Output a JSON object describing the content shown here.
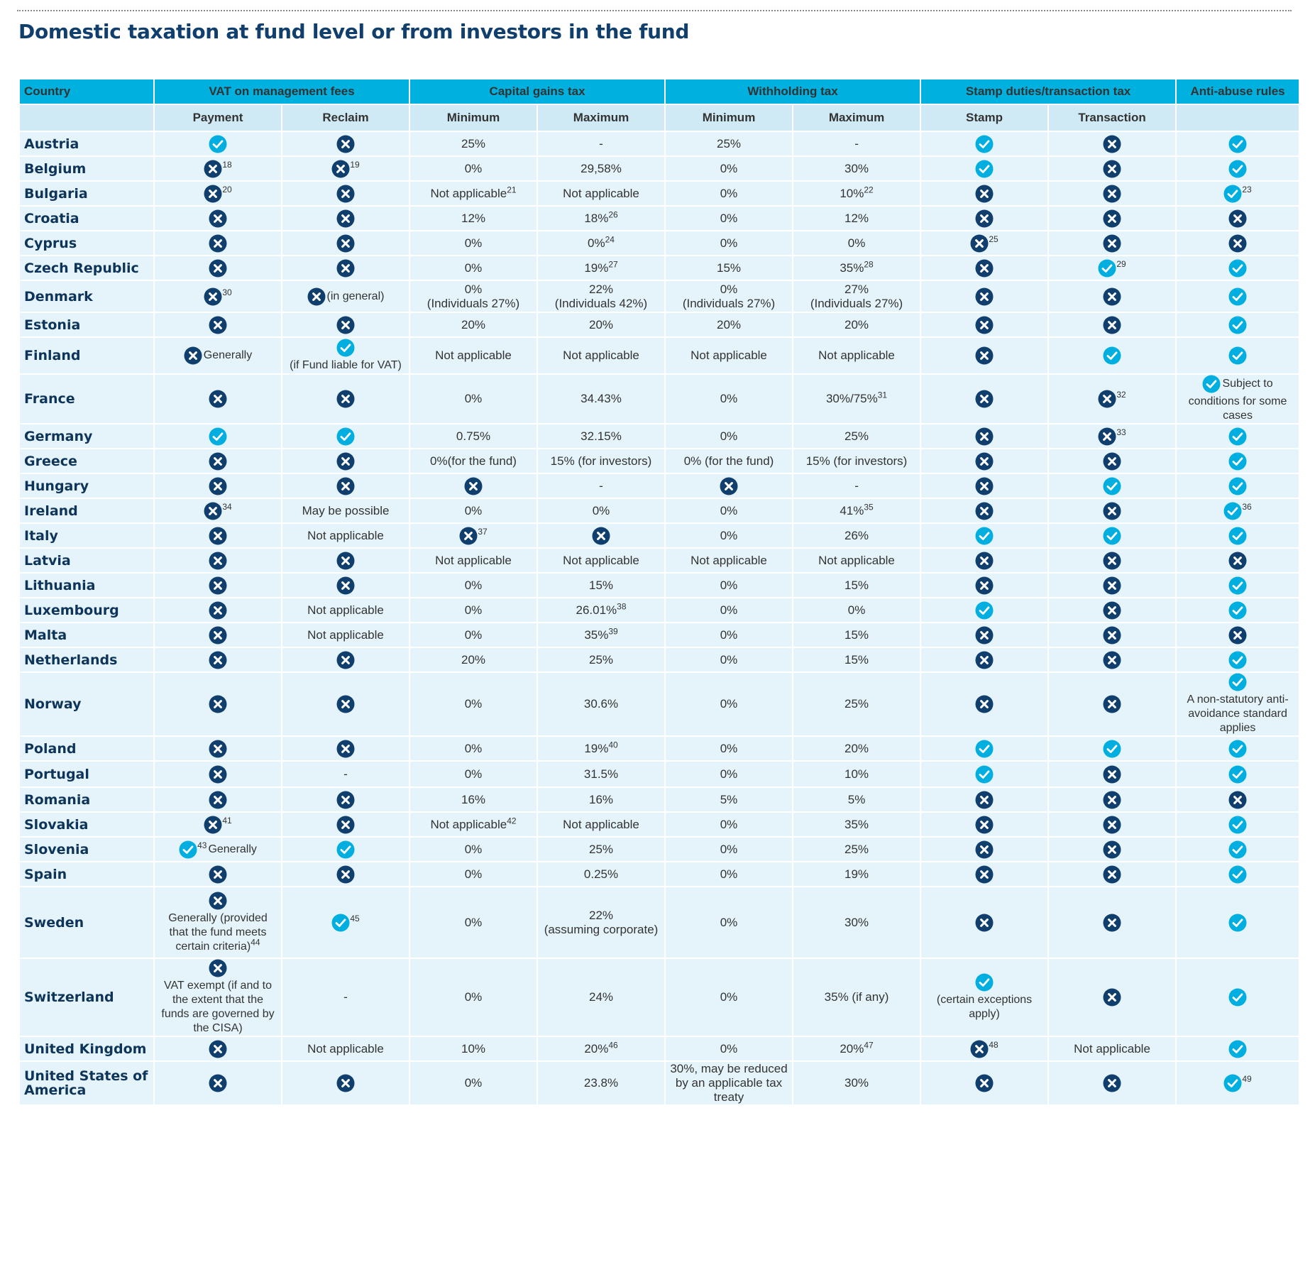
{
  "title": "Domestic taxation at fund level or from investors in the fund",
  "colors": {
    "header": "#00b0df",
    "subheader": "#cfeaf5",
    "row": "#e5f4fb",
    "navy": "#103e6d",
    "check": "#00aee0"
  },
  "columns": {
    "group": [
      "Country",
      "VAT on management fees",
      "Capital gains tax",
      "Withholding tax",
      "Stamp duties/transaction tax",
      "Anti-abuse rules"
    ],
    "sub": [
      "Payment",
      "Reclaim",
      "Minimum",
      "Maximum",
      "Minimum",
      "Maximum",
      "Stamp",
      "Transaction",
      ""
    ]
  },
  "rows": [
    {
      "country": "Austria",
      "cells": [
        {
          "icon": "check"
        },
        {
          "icon": "cross"
        },
        {
          "text": "25%"
        },
        {
          "text": "-"
        },
        {
          "text": "25%"
        },
        {
          "text": "-"
        },
        {
          "icon": "check"
        },
        {
          "icon": "cross"
        },
        {
          "icon": "check"
        }
      ]
    },
    {
      "country": "Belgium",
      "cells": [
        {
          "icon": "cross",
          "sup": "18"
        },
        {
          "icon": "cross",
          "sup": "19"
        },
        {
          "text": "0%"
        },
        {
          "text": "29,58%"
        },
        {
          "text": "0%"
        },
        {
          "text": "30%"
        },
        {
          "icon": "check"
        },
        {
          "icon": "cross"
        },
        {
          "icon": "check"
        }
      ]
    },
    {
      "country": "Bulgaria",
      "cells": [
        {
          "icon": "cross",
          "sup": "20"
        },
        {
          "icon": "cross"
        },
        {
          "text": "Not applicable",
          "sup": "21"
        },
        {
          "text": "Not applicable"
        },
        {
          "text": "0%"
        },
        {
          "text": "10%",
          "sup": "22"
        },
        {
          "icon": "cross"
        },
        {
          "icon": "cross"
        },
        {
          "icon": "check",
          "sup": "23"
        }
      ]
    },
    {
      "country": "Croatia",
      "cells": [
        {
          "icon": "cross"
        },
        {
          "icon": "cross"
        },
        {
          "text": "12%"
        },
        {
          "text": "18%",
          "sup": "26"
        },
        {
          "text": "0%"
        },
        {
          "text": "12%"
        },
        {
          "icon": "cross"
        },
        {
          "icon": "cross"
        },
        {
          "icon": "cross"
        }
      ]
    },
    {
      "country": "Cyprus",
      "cells": [
        {
          "icon": "cross"
        },
        {
          "icon": "cross"
        },
        {
          "text": "0%"
        },
        {
          "text": "0%",
          "sup": "24"
        },
        {
          "text": "0%"
        },
        {
          "text": "0%"
        },
        {
          "icon": "cross",
          "sup": "25"
        },
        {
          "icon": "cross"
        },
        {
          "icon": "cross"
        }
      ]
    },
    {
      "country": "Czech Republic",
      "cells": [
        {
          "icon": "cross"
        },
        {
          "icon": "cross"
        },
        {
          "text": "0%"
        },
        {
          "text": "19%",
          "sup": "27"
        },
        {
          "text": "15%"
        },
        {
          "text": "35%",
          "sup": "28"
        },
        {
          "icon": "cross"
        },
        {
          "icon": "check",
          "sup": "29"
        },
        {
          "icon": "check"
        }
      ]
    },
    {
      "country": "Denmark",
      "cells": [
        {
          "icon": "cross",
          "sup": "30"
        },
        {
          "icon": "cross",
          "after": "(in general)"
        },
        {
          "text": "0%",
          "sub": "(Individuals 27%)"
        },
        {
          "text": "22%",
          "sub": "(Individuals 42%)"
        },
        {
          "text": "0%",
          "sub": "(Individuals 27%)"
        },
        {
          "text": "27%",
          "sub": "(Individuals 27%)"
        },
        {
          "icon": "cross"
        },
        {
          "icon": "cross"
        },
        {
          "icon": "check"
        }
      ]
    },
    {
      "country": "Estonia",
      "cells": [
        {
          "icon": "cross"
        },
        {
          "icon": "cross"
        },
        {
          "text": "20%"
        },
        {
          "text": "20%"
        },
        {
          "text": "20%"
        },
        {
          "text": "20%"
        },
        {
          "icon": "cross"
        },
        {
          "icon": "cross"
        },
        {
          "icon": "check"
        }
      ]
    },
    {
      "country": "Finland",
      "cells": [
        {
          "icon": "cross",
          "after": "Generally"
        },
        {
          "icon": "check",
          "below": "(if Fund liable for VAT)"
        },
        {
          "text": "Not applicable"
        },
        {
          "text": "Not applicable"
        },
        {
          "text": "Not applicable"
        },
        {
          "text": "Not applicable"
        },
        {
          "icon": "cross"
        },
        {
          "icon": "check"
        },
        {
          "icon": "check"
        }
      ]
    },
    {
      "country": "France",
      "cells": [
        {
          "icon": "cross"
        },
        {
          "icon": "cross"
        },
        {
          "text": "0%"
        },
        {
          "text": "34.43%"
        },
        {
          "text": "0%"
        },
        {
          "text": "30%/75%",
          "sup": "31"
        },
        {
          "icon": "cross"
        },
        {
          "icon": "cross",
          "sup": "32"
        },
        {
          "icon": "check",
          "after": "Subject to",
          "below": "conditions for some cases"
        }
      ]
    },
    {
      "country": "Germany",
      "cells": [
        {
          "icon": "check"
        },
        {
          "icon": "check"
        },
        {
          "text": "0.75%"
        },
        {
          "text": "32.15%"
        },
        {
          "text": "0%"
        },
        {
          "text": "25%"
        },
        {
          "icon": "cross"
        },
        {
          "icon": "cross",
          "sup": "33"
        },
        {
          "icon": "check"
        }
      ]
    },
    {
      "country": "Greece",
      "cells": [
        {
          "icon": "cross"
        },
        {
          "icon": "cross"
        },
        {
          "text": "0%(for the fund)"
        },
        {
          "text": "15% (for investors)"
        },
        {
          "text": "0% (for the fund)"
        },
        {
          "text": "15% (for investors)"
        },
        {
          "icon": "cross"
        },
        {
          "icon": "cross"
        },
        {
          "icon": "check"
        }
      ]
    },
    {
      "country": "Hungary",
      "cells": [
        {
          "icon": "cross"
        },
        {
          "icon": "cross"
        },
        {
          "icon": "cross"
        },
        {
          "text": "-"
        },
        {
          "icon": "cross"
        },
        {
          "text": "-"
        },
        {
          "icon": "cross"
        },
        {
          "icon": "check"
        },
        {
          "icon": "check"
        }
      ]
    },
    {
      "country": "Ireland",
      "cells": [
        {
          "icon": "cross",
          "sup": "34"
        },
        {
          "text": "May be possible"
        },
        {
          "text": "0%"
        },
        {
          "text": "0%"
        },
        {
          "text": "0%"
        },
        {
          "text": "41%",
          "sup": "35"
        },
        {
          "icon": "cross"
        },
        {
          "icon": "cross"
        },
        {
          "icon": "check",
          "sup": "36"
        }
      ]
    },
    {
      "country": "Italy",
      "cells": [
        {
          "icon": "cross"
        },
        {
          "text": "Not applicable"
        },
        {
          "icon": "cross",
          "sup": "37"
        },
        {
          "icon": "cross"
        },
        {
          "text": "0%"
        },
        {
          "text": "26%"
        },
        {
          "icon": "check"
        },
        {
          "icon": "check"
        },
        {
          "icon": "check"
        }
      ]
    },
    {
      "country": "Latvia",
      "cells": [
        {
          "icon": "cross"
        },
        {
          "icon": "cross"
        },
        {
          "text": "Not applicable"
        },
        {
          "text": "Not applicable"
        },
        {
          "text": "Not applicable"
        },
        {
          "text": "Not applicable"
        },
        {
          "icon": "cross"
        },
        {
          "icon": "cross"
        },
        {
          "icon": "cross"
        }
      ]
    },
    {
      "country": "Lithuania",
      "cells": [
        {
          "icon": "cross"
        },
        {
          "icon": "cross"
        },
        {
          "text": "0%"
        },
        {
          "text": "15%"
        },
        {
          "text": "0%"
        },
        {
          "text": "15%"
        },
        {
          "icon": "cross"
        },
        {
          "icon": "cross"
        },
        {
          "icon": "check"
        }
      ]
    },
    {
      "country": "Luxembourg",
      "cells": [
        {
          "icon": "cross"
        },
        {
          "text": "Not applicable"
        },
        {
          "text": "0%"
        },
        {
          "text": "26.01%",
          "sup": "38"
        },
        {
          "text": "0%"
        },
        {
          "text": "0%"
        },
        {
          "icon": "check"
        },
        {
          "icon": "cross"
        },
        {
          "icon": "check"
        }
      ]
    },
    {
      "country": "Malta",
      "cells": [
        {
          "icon": "cross"
        },
        {
          "text": "Not applicable"
        },
        {
          "text": "0%"
        },
        {
          "text": "35%",
          "sup": "39"
        },
        {
          "text": "0%"
        },
        {
          "text": "15%"
        },
        {
          "icon": "cross"
        },
        {
          "icon": "cross"
        },
        {
          "icon": "cross"
        }
      ]
    },
    {
      "country": "Netherlands",
      "cells": [
        {
          "icon": "cross"
        },
        {
          "icon": "cross"
        },
        {
          "text": "20%"
        },
        {
          "text": "25%"
        },
        {
          "text": "0%"
        },
        {
          "text": "15%"
        },
        {
          "icon": "cross"
        },
        {
          "icon": "cross"
        },
        {
          "icon": "check"
        }
      ]
    },
    {
      "country": "Norway",
      "cells": [
        {
          "icon": "cross"
        },
        {
          "icon": "cross"
        },
        {
          "text": "0%"
        },
        {
          "text": "30.6%"
        },
        {
          "text": "0%"
        },
        {
          "text": "25%"
        },
        {
          "icon": "cross"
        },
        {
          "icon": "cross"
        },
        {
          "icon": "check",
          "below": "A non-statutory anti-avoidance standard applies"
        }
      ]
    },
    {
      "country": "Poland",
      "cells": [
        {
          "icon": "cross"
        },
        {
          "icon": "cross"
        },
        {
          "text": "0%"
        },
        {
          "text": "19%",
          "sup": "40"
        },
        {
          "text": "0%"
        },
        {
          "text": "20%"
        },
        {
          "icon": "check"
        },
        {
          "icon": "check"
        },
        {
          "icon": "check"
        }
      ]
    },
    {
      "country": "Portugal",
      "cells": [
        {
          "icon": "cross"
        },
        {
          "text": "-"
        },
        {
          "text": "0%"
        },
        {
          "text": "31.5%"
        },
        {
          "text": "0%"
        },
        {
          "text": "10%"
        },
        {
          "icon": "check"
        },
        {
          "icon": "cross"
        },
        {
          "icon": "check"
        }
      ]
    },
    {
      "country": "Romania",
      "cells": [
        {
          "icon": "cross"
        },
        {
          "icon": "cross"
        },
        {
          "text": "16%"
        },
        {
          "text": "16%"
        },
        {
          "text": "5%"
        },
        {
          "text": "5%"
        },
        {
          "icon": "cross"
        },
        {
          "icon": "cross"
        },
        {
          "icon": "cross"
        }
      ]
    },
    {
      "country": "Slovakia",
      "cells": [
        {
          "icon": "cross",
          "sup": "41"
        },
        {
          "icon": "cross"
        },
        {
          "text": "Not applicable",
          "sup": "42"
        },
        {
          "text": "Not applicable"
        },
        {
          "text": "0%"
        },
        {
          "text": "35%"
        },
        {
          "icon": "cross"
        },
        {
          "icon": "cross"
        },
        {
          "icon": "check"
        }
      ]
    },
    {
      "country": "Slovenia",
      "cells": [
        {
          "icon": "check",
          "sup": "43",
          "after": "Generally"
        },
        {
          "icon": "check"
        },
        {
          "text": "0%"
        },
        {
          "text": "25%"
        },
        {
          "text": "0%"
        },
        {
          "text": "25%"
        },
        {
          "icon": "cross"
        },
        {
          "icon": "cross"
        },
        {
          "icon": "check"
        }
      ]
    },
    {
      "country": "Spain",
      "cells": [
        {
          "icon": "cross"
        },
        {
          "icon": "cross"
        },
        {
          "text": "0%"
        },
        {
          "text": "0.25%"
        },
        {
          "text": "0%"
        },
        {
          "text": "19%"
        },
        {
          "icon": "cross"
        },
        {
          "icon": "cross"
        },
        {
          "icon": "check"
        }
      ]
    },
    {
      "country": "Sweden",
      "cells": [
        {
          "icon": "cross",
          "below": "Generally (provided that the fund meets certain criteria)",
          "belowSup": "44"
        },
        {
          "icon": "check",
          "sup": "45"
        },
        {
          "text": "0%"
        },
        {
          "text": "22%",
          "sub": "(assuming corporate)"
        },
        {
          "text": "0%"
        },
        {
          "text": "30%"
        },
        {
          "icon": "cross"
        },
        {
          "icon": "cross"
        },
        {
          "icon": "check"
        }
      ]
    },
    {
      "country": "Switzerland",
      "cells": [
        {
          "icon": "cross",
          "below": "VAT exempt (if and to the extent that the funds are governed by the CISA)"
        },
        {
          "text": "-"
        },
        {
          "text": "0%"
        },
        {
          "text": "24%"
        },
        {
          "text": "0%"
        },
        {
          "text": "35% (if any)"
        },
        {
          "icon": "check",
          "below": "(certain exceptions apply)"
        },
        {
          "icon": "cross"
        },
        {
          "icon": "check"
        }
      ]
    },
    {
      "country": "United Kingdom",
      "cells": [
        {
          "icon": "cross"
        },
        {
          "text": "Not applicable"
        },
        {
          "text": "10%"
        },
        {
          "text": "20%",
          "sup": "46"
        },
        {
          "text": "0%"
        },
        {
          "text": "20%",
          "sup": "47"
        },
        {
          "icon": "cross",
          "sup": "48"
        },
        {
          "text": "Not applicable"
        },
        {
          "icon": "check"
        }
      ]
    },
    {
      "country": "United States of America",
      "cells": [
        {
          "icon": "cross"
        },
        {
          "icon": "cross"
        },
        {
          "text": "0%"
        },
        {
          "text": "23.8%"
        },
        {
          "text": "30%, may be reduced by an applicable tax treaty"
        },
        {
          "text": "30%"
        },
        {
          "icon": "cross"
        },
        {
          "icon": "cross"
        },
        {
          "icon": "check",
          "sup": "49"
        }
      ]
    }
  ]
}
